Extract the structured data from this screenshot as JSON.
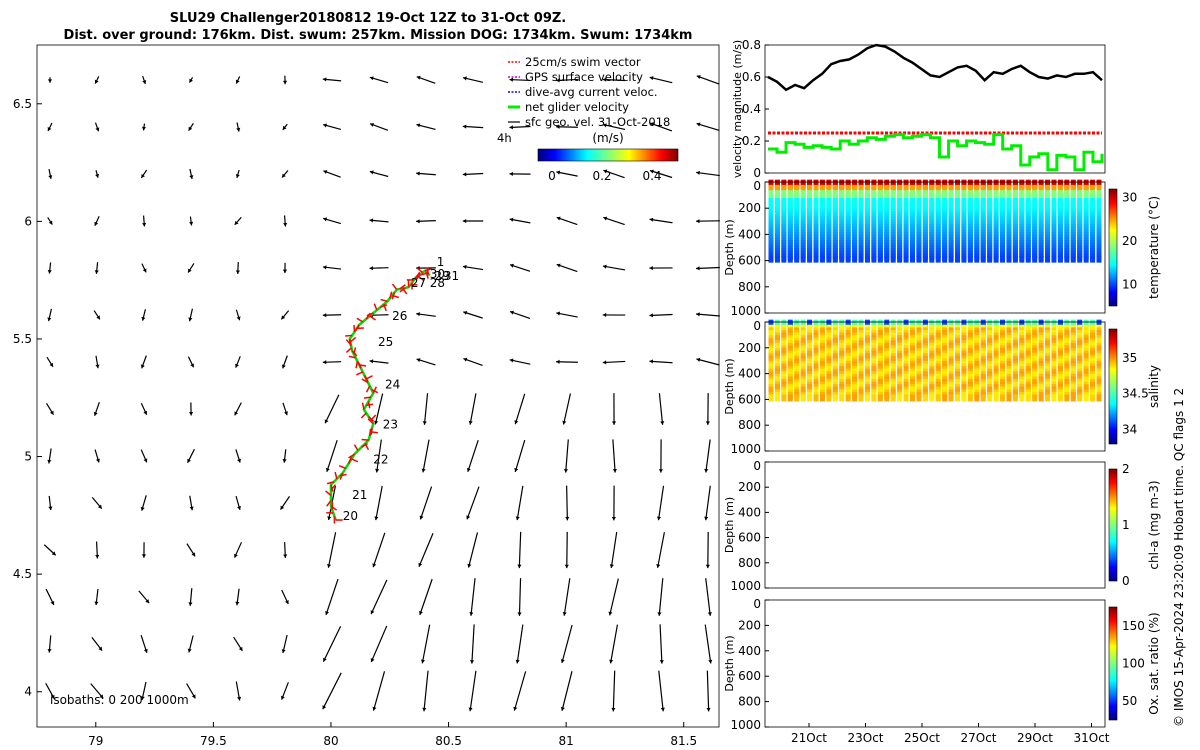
{
  "title": {
    "line1": "SLU29 Challenger20180812 19-Oct 12Z to 31-Oct 09Z.",
    "line2": "Dist. over ground: 176km. Dist. swum: 257km. Mission DOG: 1734km. Swum: 1734km"
  },
  "credit": "© IMOS 15-Apr-2024 23:20:09 Hobart time. QC flags 1  2",
  "map": {
    "x_ticks": [
      "79",
      "79.5",
      "80",
      "80.5",
      "81",
      "81.5"
    ],
    "y_ticks": [
      "4",
      "4.5",
      "5",
      "5.5",
      "6",
      "6.5"
    ],
    "isobaths": "isobaths: 0   200  1000m",
    "legend": {
      "items": [
        {
          "label": "25cm/s swim vector",
          "color": "#ff0000"
        },
        {
          "label": "GPS surface velocity",
          "color": "#cc00cc"
        },
        {
          "label": "dive-avg current veloc.",
          "color": "#0000ff"
        },
        {
          "label": "net glider velocity",
          "color": "#00ee00"
        },
        {
          "label": "sfc geo. vel. 31-Oct-2018",
          "color": "#000000"
        }
      ],
      "interval_label": "4h",
      "colorbar_title": "(m/s)",
      "colorbar_ticks": [
        "0",
        "0.2",
        "0.4"
      ]
    },
    "day_labels": [
      "1",
      "30",
      "31",
      "29",
      "28",
      "27",
      "26",
      "25",
      "24",
      "23",
      "22",
      "21",
      "20"
    ]
  },
  "chart_data": [
    {
      "type": "quiver",
      "title": "SLU29 Challenger20180812 19-Oct 12Z to 31-Oct 09Z.",
      "xlim": [
        78.75,
        81.65
      ],
      "ylim": [
        3.85,
        6.75
      ],
      "track": {
        "name": "net glider velocity",
        "points": [
          [
            80.02,
            4.73
          ],
          [
            80.0,
            4.79
          ],
          [
            80.0,
            4.88
          ],
          [
            80.05,
            4.93
          ],
          [
            80.1,
            5.01
          ],
          [
            80.16,
            5.07
          ],
          [
            80.18,
            5.14
          ],
          [
            80.14,
            5.2
          ],
          [
            80.18,
            5.27
          ],
          [
            80.15,
            5.33
          ],
          [
            80.12,
            5.39
          ],
          [
            80.09,
            5.45
          ],
          [
            80.08,
            5.5
          ],
          [
            80.12,
            5.56
          ],
          [
            80.18,
            5.61
          ],
          [
            80.24,
            5.66
          ],
          [
            80.28,
            5.71
          ],
          [
            80.33,
            5.72
          ],
          [
            80.36,
            5.76
          ],
          [
            80.4,
            5.79
          ],
          [
            80.42,
            5.77
          ]
        ]
      },
      "day_labels": [
        {
          "label": "20",
          "x": 80.05,
          "y": 4.73
        },
        {
          "label": "21",
          "x": 80.09,
          "y": 4.82
        },
        {
          "label": "22",
          "x": 80.18,
          "y": 4.97
        },
        {
          "label": "23",
          "x": 80.22,
          "y": 5.12
        },
        {
          "label": "24",
          "x": 80.23,
          "y": 5.29
        },
        {
          "label": "25",
          "x": 80.2,
          "y": 5.47
        },
        {
          "label": "26",
          "x": 80.26,
          "y": 5.58
        },
        {
          "label": "27",
          "x": 80.34,
          "y": 5.72
        },
        {
          "label": "28",
          "x": 80.42,
          "y": 5.72
        },
        {
          "label": "29",
          "x": 80.44,
          "y": 5.75
        },
        {
          "label": "30",
          "x": 80.42,
          "y": 5.76
        },
        {
          "label": "31",
          "x": 80.48,
          "y": 5.75
        },
        {
          "label": "1",
          "x": 80.45,
          "y": 5.81
        }
      ]
    },
    {
      "type": "line",
      "ylabel": "velocity magnitude (m/s)",
      "ylim": [
        0,
        0.8
      ],
      "y_ticks": [
        "0",
        "0.2",
        "0.4",
        "0.6",
        "0.8"
      ],
      "series": [
        {
          "name": "sfc",
          "color": "#000000",
          "values": [
            0.6,
            0.57,
            0.52,
            0.55,
            0.53,
            0.58,
            0.62,
            0.68,
            0.7,
            0.71,
            0.74,
            0.78,
            0.8,
            0.79,
            0.76,
            0.72,
            0.69,
            0.65,
            0.61,
            0.6,
            0.63,
            0.66,
            0.67,
            0.64,
            0.58,
            0.63,
            0.62,
            0.65,
            0.67,
            0.63,
            0.6,
            0.59,
            0.61,
            0.6,
            0.62,
            0.62,
            0.63,
            0.58
          ]
        },
        {
          "name": "swim",
          "color": "#ff0000",
          "values": [
            0.25,
            0.25,
            0.25,
            0.25,
            0.25,
            0.25,
            0.25,
            0.25,
            0.25,
            0.25,
            0.25,
            0.25,
            0.25,
            0.25,
            0.25,
            0.25,
            0.25,
            0.25,
            0.25,
            0.25,
            0.25,
            0.25,
            0.25,
            0.25,
            0.25,
            0.25,
            0.25,
            0.25,
            0.25,
            0.25,
            0.25,
            0.25,
            0.25,
            0.25,
            0.25,
            0.25,
            0.25,
            0.25
          ]
        },
        {
          "name": "net",
          "color": "#00ee00",
          "values": [
            0.15,
            0.13,
            0.19,
            0.18,
            0.16,
            0.17,
            0.16,
            0.15,
            0.2,
            0.18,
            0.2,
            0.22,
            0.21,
            0.23,
            0.24,
            0.22,
            0.23,
            0.24,
            0.22,
            0.1,
            0.2,
            0.17,
            0.2,
            0.19,
            0.18,
            0.24,
            0.15,
            0.17,
            0.05,
            0.1,
            0.12,
            0.02,
            0.11,
            0.1,
            0.02,
            0.13,
            0.07,
            0.12
          ]
        }
      ]
    },
    {
      "type": "heatmap",
      "ylabel": "Depth (m)",
      "clabel": "temperature (°C)",
      "clim": [
        5,
        32
      ],
      "colorbar_ticks": [
        "10",
        "20",
        "30"
      ],
      "y_ticks": [
        "0",
        "200",
        "400",
        "600",
        "800",
        "1000"
      ]
    },
    {
      "type": "heatmap",
      "ylabel": "Depth (m)",
      "clabel": "salinity",
      "clim": [
        33.8,
        35.4
      ],
      "colorbar_ticks": [
        "34",
        "34.5",
        "35"
      ],
      "y_ticks": [
        "0",
        "200",
        "400",
        "600",
        "800",
        "1000"
      ]
    },
    {
      "type": "heatmap",
      "ylabel": "Depth (m)",
      "clabel": "chl-a (mg m-3)",
      "clim": [
        0,
        2
      ],
      "colorbar_ticks": [
        "0",
        "1",
        "2"
      ],
      "y_ticks": [
        "0",
        "200",
        "400",
        "600",
        "800",
        "1000"
      ]
    },
    {
      "type": "heatmap",
      "ylabel": "Depth (m)",
      "clabel": "Ox. sat. ratio (%)",
      "clim": [
        25,
        175
      ],
      "colorbar_ticks": [
        "50",
        "100",
        "150"
      ],
      "y_ticks": [
        "0",
        "200",
        "400",
        "600",
        "800",
        "1000"
      ]
    }
  ],
  "time_axis": {
    "ticks": [
      "21Oct",
      "23Oct",
      "25Oct",
      "27Oct",
      "29Oct",
      "31Oct"
    ]
  }
}
